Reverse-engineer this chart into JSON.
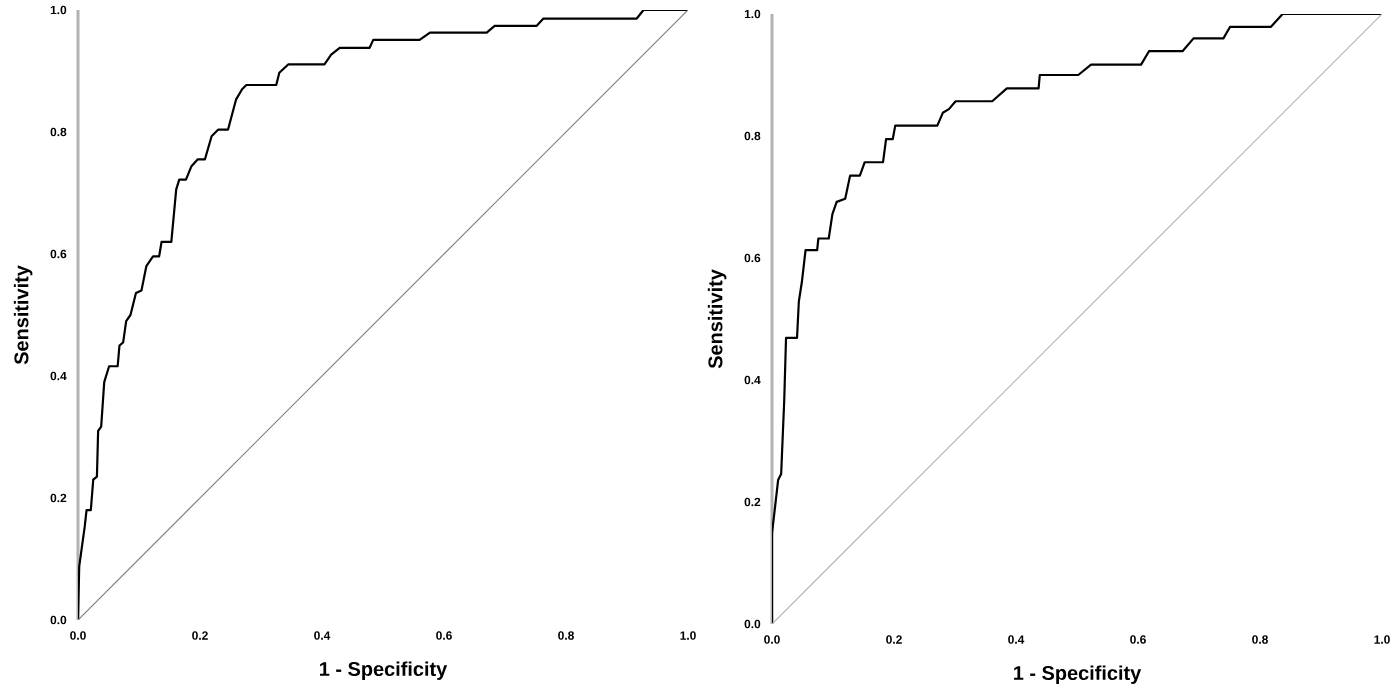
{
  "chart_data": [
    {
      "type": "line",
      "xlabel": "1 - Specificity",
      "ylabel": "Sensitivity",
      "xlim": [
        0,
        1
      ],
      "ylim": [
        0,
        1
      ],
      "xticks": [
        {
          "value": 0,
          "label": "0.0"
        },
        {
          "value": 0.2,
          "label": "0.2"
        },
        {
          "value": 0.4,
          "label": "0.4"
        },
        {
          "value": 0.6,
          "label": "0.6"
        },
        {
          "value": 0.8,
          "label": "0.8"
        },
        {
          "value": 1,
          "label": "1.0"
        }
      ],
      "yticks": [
        {
          "value": 0,
          "label": "0.0"
        },
        {
          "value": 0.2,
          "label": "0.2"
        },
        {
          "value": 0.4,
          "label": "0.4"
        },
        {
          "value": 0.6,
          "label": "0.6"
        },
        {
          "value": 0.8,
          "label": "0.8"
        },
        {
          "value": 1,
          "label": "1.0"
        }
      ],
      "series": [
        {
          "color": "#000000",
          "x": [
            0,
            0.002,
            0.011,
            0.014,
            0.021,
            0.025,
            0.031,
            0.033,
            0.038,
            0.043,
            0.051,
            0.065,
            0.068,
            0.074,
            0.079,
            0.086,
            0.095,
            0.104,
            0.112,
            0.123,
            0.133,
            0.137,
            0.153,
            0.161,
            0.166,
            0.177,
            0.186,
            0.196,
            0.208,
            0.219,
            0.23,
            0.246,
            0.259,
            0.269,
            0.276,
            0.325,
            0.33,
            0.345,
            0.404,
            0.415,
            0.429,
            0.478,
            0.484,
            0.56,
            0.577,
            0.67,
            0.683,
            0.752,
            0.763,
            0.916,
            0.927,
            1
          ],
          "values": [
            0,
            0.088,
            0.153,
            0.18,
            0.18,
            0.23,
            0.235,
            0.31,
            0.317,
            0.39,
            0.416,
            0.416,
            0.45,
            0.455,
            0.49,
            0.5,
            0.536,
            0.54,
            0.58,
            0.596,
            0.596,
            0.62,
            0.62,
            0.706,
            0.722,
            0.722,
            0.744,
            0.755,
            0.755,
            0.793,
            0.804,
            0.804,
            0.853,
            0.87,
            0.877,
            0.877,
            0.897,
            0.911,
            0.911,
            0.927,
            0.938,
            0.938,
            0.951,
            0.951,
            0.963,
            0.963,
            0.974,
            0.974,
            0.986,
            0.986,
            1,
            1
          ]
        },
        {
          "color": "#808080",
          "x": [
            0,
            1
          ],
          "values": [
            0,
            1
          ]
        }
      ]
    },
    {
      "type": "line",
      "xlabel": "1 - Specificity",
      "ylabel": "Sensitivity",
      "xlim": [
        0,
        1
      ],
      "ylim": [
        0,
        1
      ],
      "xticks": [
        {
          "value": 0,
          "label": "0.0"
        },
        {
          "value": 0.2,
          "label": "0.2"
        },
        {
          "value": 0.4,
          "label": "0.4"
        },
        {
          "value": 0.6,
          "label": "0.6"
        },
        {
          "value": 0.8,
          "label": "0.8"
        },
        {
          "value": 1,
          "label": "1.0"
        }
      ],
      "yticks": [
        {
          "value": 0,
          "label": "0.0"
        },
        {
          "value": 0.2,
          "label": "0.2"
        },
        {
          "value": 0.4,
          "label": "0.4"
        },
        {
          "value": 0.6,
          "label": "0.6"
        },
        {
          "value": 0.8,
          "label": "0.8"
        },
        {
          "value": 1,
          "label": "1.0"
        }
      ],
      "series": [
        {
          "color": "#000000",
          "x": [
            0,
            0,
            0.005,
            0.01,
            0.015,
            0.02,
            0.023,
            0.041,
            0.044,
            0.049,
            0.055,
            0.074,
            0.076,
            0.093,
            0.099,
            0.106,
            0.12,
            0.128,
            0.144,
            0.152,
            0.182,
            0.187,
            0.198,
            0.202,
            0.271,
            0.28,
            0.29,
            0.301,
            0.361,
            0.385,
            0.437,
            0.439,
            0.502,
            0.523,
            0.605,
            0.618,
            0.673,
            0.691,
            0.74,
            0.751,
            0.818,
            0.837,
            1
          ],
          "values": [
            0,
            0.149,
            0.192,
            0.236,
            0.246,
            0.366,
            0.469,
            0.469,
            0.529,
            0.561,
            0.613,
            0.613,
            0.632,
            0.632,
            0.672,
            0.692,
            0.697,
            0.735,
            0.735,
            0.757,
            0.757,
            0.795,
            0.795,
            0.817,
            0.817,
            0.838,
            0.844,
            0.857,
            0.857,
            0.878,
            0.878,
            0.9,
            0.9,
            0.917,
            0.917,
            0.939,
            0.939,
            0.96,
            0.96,
            0.979,
            0.979,
            1,
            1
          ]
        },
        {
          "color": "#b4b4b4",
          "x": [
            0,
            1
          ],
          "values": [
            0,
            1
          ]
        }
      ]
    }
  ]
}
